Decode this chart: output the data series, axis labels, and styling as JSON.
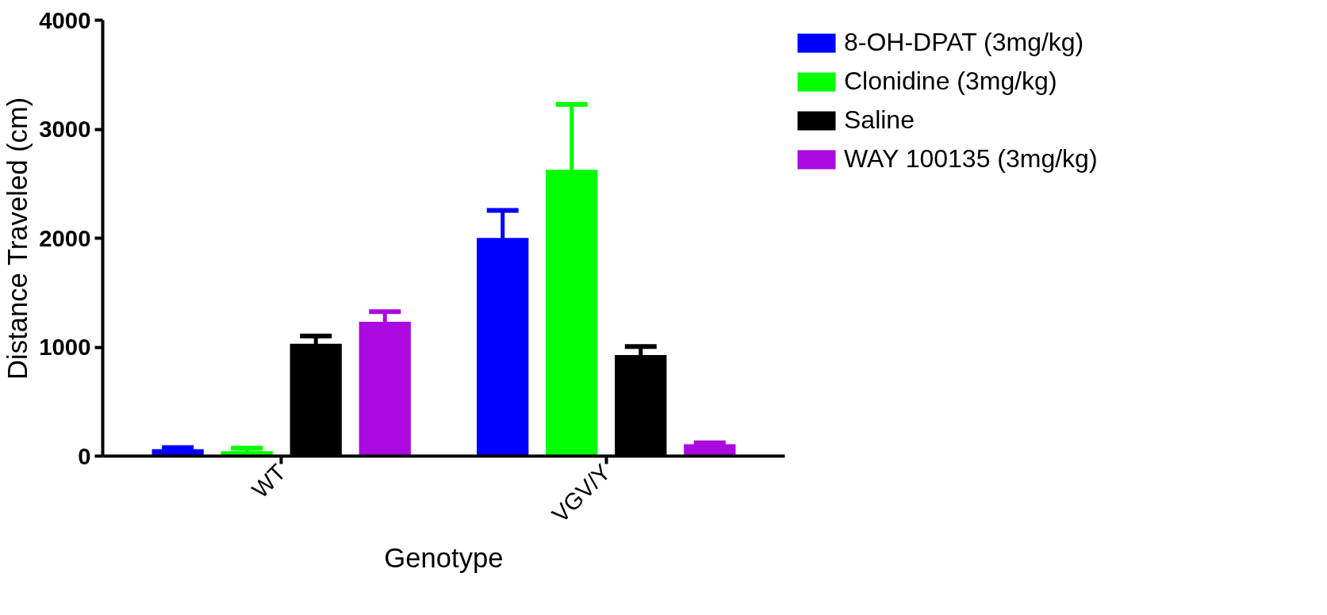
{
  "chart_data": {
    "type": "bar",
    "xlabel": "Genotype",
    "ylabel": "Distance Traveled (cm)",
    "categories": [
      "WT",
      "VGV/Y"
    ],
    "series": [
      {
        "name": "8-OH-DPAT (3mg/kg)",
        "color": "#0000ff",
        "values": [
          64,
          2001
        ],
        "errors": [
          14,
          254
        ]
      },
      {
        "name": "Clonidine (3mg/kg)",
        "color": "#00ff00",
        "values": [
          45,
          2628
        ],
        "errors": [
          28,
          600
        ]
      },
      {
        "name": "Saline",
        "color": "#000000",
        "values": [
          1031,
          927
        ],
        "errors": [
          70,
          78
        ]
      },
      {
        "name": "WAY 100135 (3mg/kg)",
        "color": "#aa0ae0",
        "values": [
          1233,
          110
        ],
        "errors": [
          92,
          12
        ]
      }
    ],
    "ylim": [
      0,
      4000
    ],
    "yticks": [
      0,
      1000,
      2000,
      3000,
      4000
    ],
    "grid": false,
    "legend": "top right"
  }
}
